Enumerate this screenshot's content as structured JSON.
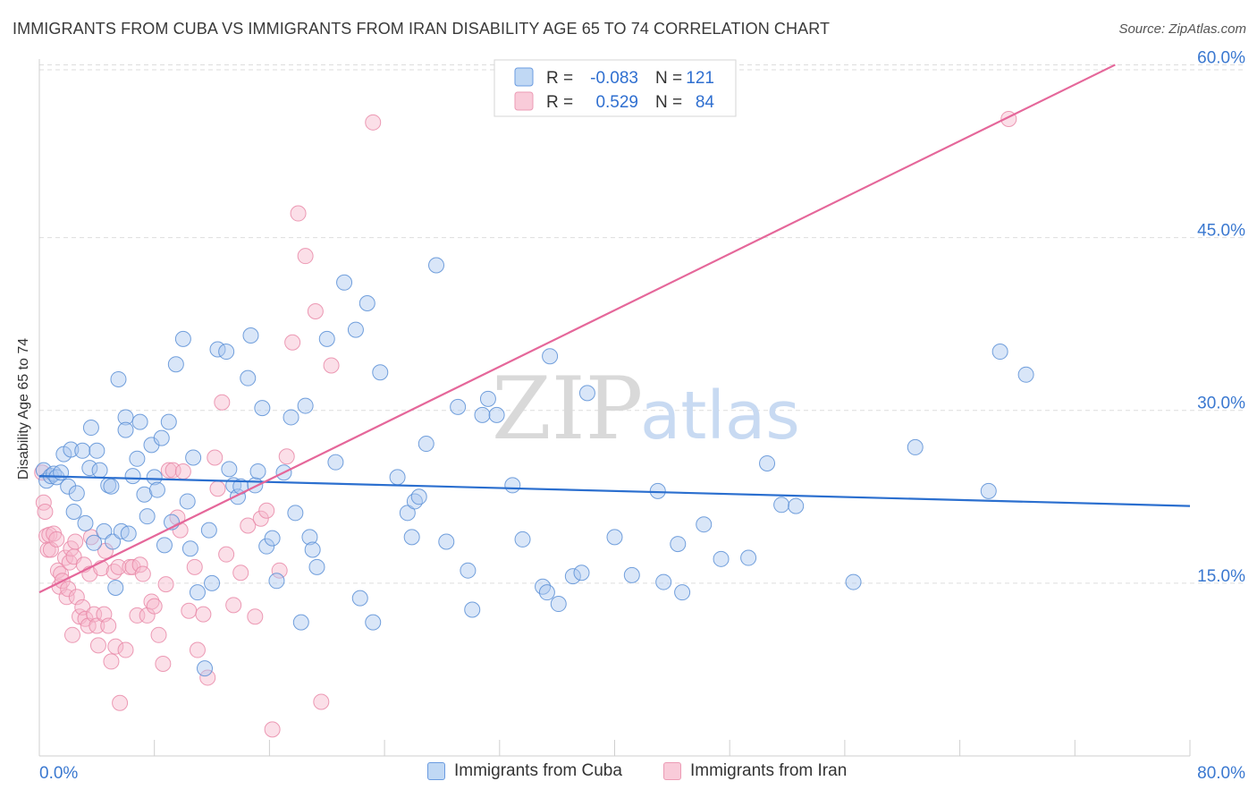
{
  "header": {
    "title": "IMMIGRANTS FROM CUBA VS IMMIGRANTS FROM IRAN DISABILITY AGE 65 TO 74 CORRELATION CHART",
    "source": "Source: ZipAtlas.com"
  },
  "watermark": {
    "zip": "ZIP",
    "atlas": "atlas"
  },
  "colors": {
    "cuba_fill": "#aac8f0",
    "cuba_stroke": "#5a8fd6",
    "cuba_line": "#2b6fcf",
    "iran_fill": "#f7b8cc",
    "iran_stroke": "#e98aa8",
    "iran_line": "#e5679a",
    "tick_label": "#3a78d0",
    "grid": "#dddddd"
  },
  "legend": {
    "rows": [
      {
        "r_label": "R =",
        "r_value": "-0.083",
        "n_label": "N =",
        "n_value": "121"
      },
      {
        "r_label": "R =",
        "r_value": "0.529",
        "n_label": "N =",
        "n_value": "84"
      }
    ]
  },
  "bottom_legend": {
    "cuba": "Immigrants from Cuba",
    "iran": "Immigrants from Iran"
  },
  "chart_data": {
    "type": "scatter",
    "title": "IMMIGRANTS FROM CUBA VS IMMIGRANTS FROM IRAN DISABILITY AGE 65 TO 74 CORRELATION CHART",
    "xlabel": "",
    "ylabel": "Disability Age 65 to 74",
    "xlim": [
      0,
      80
    ],
    "ylim": [
      0,
      60.5
    ],
    "x_tick_labels": [
      "0.0%",
      "80.0%"
    ],
    "y_ticks": [
      {
        "value": 15,
        "label": "15.0%"
      },
      {
        "value": 30,
        "label": "30.0%"
      },
      {
        "value": 45,
        "label": "45.0%"
      },
      {
        "value": 60,
        "label": "60.0%"
      }
    ],
    "grid": true,
    "legend_position": "top-center",
    "series": [
      {
        "name": "Immigrants from Cuba",
        "R": -0.083,
        "N": 121,
        "trend": {
          "x": [
            0.0,
            80.0
          ],
          "y": [
            24.3,
            21.7
          ]
        },
        "points": [
          [
            0.3,
            24.8
          ],
          [
            0.5,
            23.9
          ],
          [
            0.8,
            24.3
          ],
          [
            1.0,
            24.5
          ],
          [
            1.2,
            24.2
          ],
          [
            1.5,
            24.6
          ],
          [
            1.7,
            26.2
          ],
          [
            2.0,
            23.4
          ],
          [
            2.2,
            26.6
          ],
          [
            2.4,
            21.2
          ],
          [
            2.6,
            22.8
          ],
          [
            3.0,
            26.5
          ],
          [
            3.2,
            20.2
          ],
          [
            3.5,
            25.0
          ],
          [
            3.6,
            28.5
          ],
          [
            3.8,
            18.5
          ],
          [
            4.0,
            26.5
          ],
          [
            4.2,
            24.8
          ],
          [
            4.5,
            19.5
          ],
          [
            4.8,
            23.5
          ],
          [
            5.0,
            23.4
          ],
          [
            5.1,
            18.6
          ],
          [
            5.3,
            14.6
          ],
          [
            5.5,
            32.7
          ],
          [
            5.7,
            19.5
          ],
          [
            6.0,
            29.4
          ],
          [
            6.0,
            28.3
          ],
          [
            6.2,
            19.3
          ],
          [
            6.5,
            24.3
          ],
          [
            6.8,
            25.8
          ],
          [
            7.0,
            29.0
          ],
          [
            7.3,
            22.7
          ],
          [
            7.5,
            20.8
          ],
          [
            7.8,
            27.0
          ],
          [
            8.0,
            24.2
          ],
          [
            8.2,
            23.1
          ],
          [
            8.5,
            27.6
          ],
          [
            8.7,
            18.3
          ],
          [
            9.0,
            29.0
          ],
          [
            9.2,
            20.3
          ],
          [
            9.5,
            34.0
          ],
          [
            10.0,
            36.2
          ],
          [
            10.3,
            22.1
          ],
          [
            10.5,
            18.0
          ],
          [
            10.7,
            25.9
          ],
          [
            11.0,
            14.2
          ],
          [
            11.5,
            7.6
          ],
          [
            11.8,
            19.6
          ],
          [
            12.0,
            15.0
          ],
          [
            12.4,
            35.3
          ],
          [
            13.0,
            35.1
          ],
          [
            13.2,
            24.9
          ],
          [
            13.5,
            23.5
          ],
          [
            13.8,
            22.5
          ],
          [
            14.0,
            23.4
          ],
          [
            14.5,
            32.8
          ],
          [
            14.7,
            36.5
          ],
          [
            15.0,
            23.5
          ],
          [
            15.2,
            24.7
          ],
          [
            15.5,
            30.2
          ],
          [
            15.8,
            18.2
          ],
          [
            16.2,
            18.9
          ],
          [
            16.5,
            15.2
          ],
          [
            17.0,
            24.6
          ],
          [
            17.5,
            29.4
          ],
          [
            17.8,
            21.1
          ],
          [
            18.2,
            11.6
          ],
          [
            18.5,
            30.4
          ],
          [
            18.8,
            19.0
          ],
          [
            19.0,
            17.9
          ],
          [
            19.3,
            16.4
          ],
          [
            20.0,
            36.2
          ],
          [
            20.6,
            25.5
          ],
          [
            21.2,
            41.1
          ],
          [
            22.0,
            37.0
          ],
          [
            22.3,
            13.7
          ],
          [
            22.8,
            39.3
          ],
          [
            23.2,
            11.6
          ],
          [
            23.7,
            33.3
          ],
          [
            24.9,
            24.2
          ],
          [
            25.6,
            21.1
          ],
          [
            25.9,
            19.0
          ],
          [
            26.1,
            22.1
          ],
          [
            26.4,
            22.5
          ],
          [
            26.9,
            27.1
          ],
          [
            27.6,
            42.6
          ],
          [
            28.3,
            18.6
          ],
          [
            29.1,
            30.3
          ],
          [
            29.8,
            16.1
          ],
          [
            30.1,
            12.7
          ],
          [
            30.8,
            29.6
          ],
          [
            31.2,
            31.0
          ],
          [
            31.8,
            29.6
          ],
          [
            32.9,
            23.5
          ],
          [
            33.6,
            18.8
          ],
          [
            35.0,
            14.7
          ],
          [
            35.5,
            34.7
          ],
          [
            35.3,
            14.2
          ],
          [
            36.1,
            13.2
          ],
          [
            37.1,
            15.6
          ],
          [
            37.7,
            15.9
          ],
          [
            38.1,
            31.5
          ],
          [
            40.0,
            19.0
          ],
          [
            41.2,
            15.7
          ],
          [
            43.0,
            23.0
          ],
          [
            43.4,
            15.1
          ],
          [
            44.4,
            18.4
          ],
          [
            44.7,
            14.2
          ],
          [
            46.2,
            20.1
          ],
          [
            47.4,
            17.1
          ],
          [
            49.3,
            17.2
          ],
          [
            50.6,
            25.4
          ],
          [
            51.6,
            21.8
          ],
          [
            52.6,
            21.7
          ],
          [
            56.6,
            15.1
          ],
          [
            60.9,
            26.8
          ],
          [
            66.0,
            23.0
          ],
          [
            66.8,
            35.1
          ],
          [
            68.6,
            33.1
          ]
        ]
      },
      {
        "name": "Immigrants from Iran",
        "R": 0.529,
        "N": 84,
        "trend": {
          "x": [
            0.0,
            74.8
          ],
          "y": [
            14.2,
            60.0
          ]
        },
        "points": [
          [
            0.2,
            24.6
          ],
          [
            0.3,
            22.0
          ],
          [
            0.4,
            21.2
          ],
          [
            0.5,
            19.1
          ],
          [
            0.6,
            17.9
          ],
          [
            0.7,
            19.2
          ],
          [
            0.8,
            17.9
          ],
          [
            1.0,
            19.3
          ],
          [
            1.2,
            18.8
          ],
          [
            1.3,
            16.1
          ],
          [
            1.4,
            14.7
          ],
          [
            1.5,
            15.8
          ],
          [
            1.6,
            15.2
          ],
          [
            1.8,
            17.2
          ],
          [
            1.9,
            13.8
          ],
          [
            2.0,
            14.5
          ],
          [
            2.1,
            16.8
          ],
          [
            2.2,
            18.0
          ],
          [
            2.3,
            10.5
          ],
          [
            2.4,
            17.3
          ],
          [
            2.5,
            18.6
          ],
          [
            2.6,
            13.8
          ],
          [
            2.8,
            12.1
          ],
          [
            3.0,
            12.9
          ],
          [
            3.1,
            16.6
          ],
          [
            3.2,
            11.9
          ],
          [
            3.4,
            11.3
          ],
          [
            3.5,
            15.8
          ],
          [
            3.6,
            19.0
          ],
          [
            3.8,
            12.3
          ],
          [
            4.0,
            11.3
          ],
          [
            4.1,
            9.6
          ],
          [
            4.3,
            16.3
          ],
          [
            4.5,
            12.3
          ],
          [
            4.6,
            17.8
          ],
          [
            4.8,
            11.3
          ],
          [
            5.0,
            8.2
          ],
          [
            5.2,
            16.0
          ],
          [
            5.3,
            9.5
          ],
          [
            5.5,
            16.4
          ],
          [
            5.6,
            4.6
          ],
          [
            6.0,
            9.2
          ],
          [
            6.3,
            16.4
          ],
          [
            6.5,
            16.4
          ],
          [
            6.8,
            12.2
          ],
          [
            7.0,
            16.6
          ],
          [
            7.2,
            15.8
          ],
          [
            7.5,
            12.2
          ],
          [
            7.8,
            13.4
          ],
          [
            8.0,
            13.0
          ],
          [
            8.3,
            10.5
          ],
          [
            8.6,
            8.0
          ],
          [
            8.8,
            14.9
          ],
          [
            9.0,
            24.8
          ],
          [
            9.3,
            24.8
          ],
          [
            9.6,
            20.7
          ],
          [
            9.8,
            19.6
          ],
          [
            10.0,
            24.7
          ],
          [
            10.4,
            12.6
          ],
          [
            10.8,
            16.4
          ],
          [
            11.0,
            9.2
          ],
          [
            11.4,
            12.3
          ],
          [
            11.7,
            6.8
          ],
          [
            12.2,
            25.9
          ],
          [
            12.4,
            23.2
          ],
          [
            12.7,
            30.7
          ],
          [
            13.0,
            17.5
          ],
          [
            13.5,
            13.1
          ],
          [
            14.0,
            15.9
          ],
          [
            14.5,
            20.0
          ],
          [
            15.0,
            12.1
          ],
          [
            15.4,
            20.6
          ],
          [
            15.8,
            21.3
          ],
          [
            16.2,
            2.3
          ],
          [
            16.7,
            16.1
          ],
          [
            17.2,
            26.0
          ],
          [
            17.6,
            35.9
          ],
          [
            18.0,
            47.1
          ],
          [
            18.5,
            43.4
          ],
          [
            19.2,
            38.6
          ],
          [
            19.6,
            4.7
          ],
          [
            20.3,
            33.9
          ],
          [
            23.2,
            55.0
          ],
          [
            67.4,
            55.3
          ]
        ]
      }
    ]
  }
}
